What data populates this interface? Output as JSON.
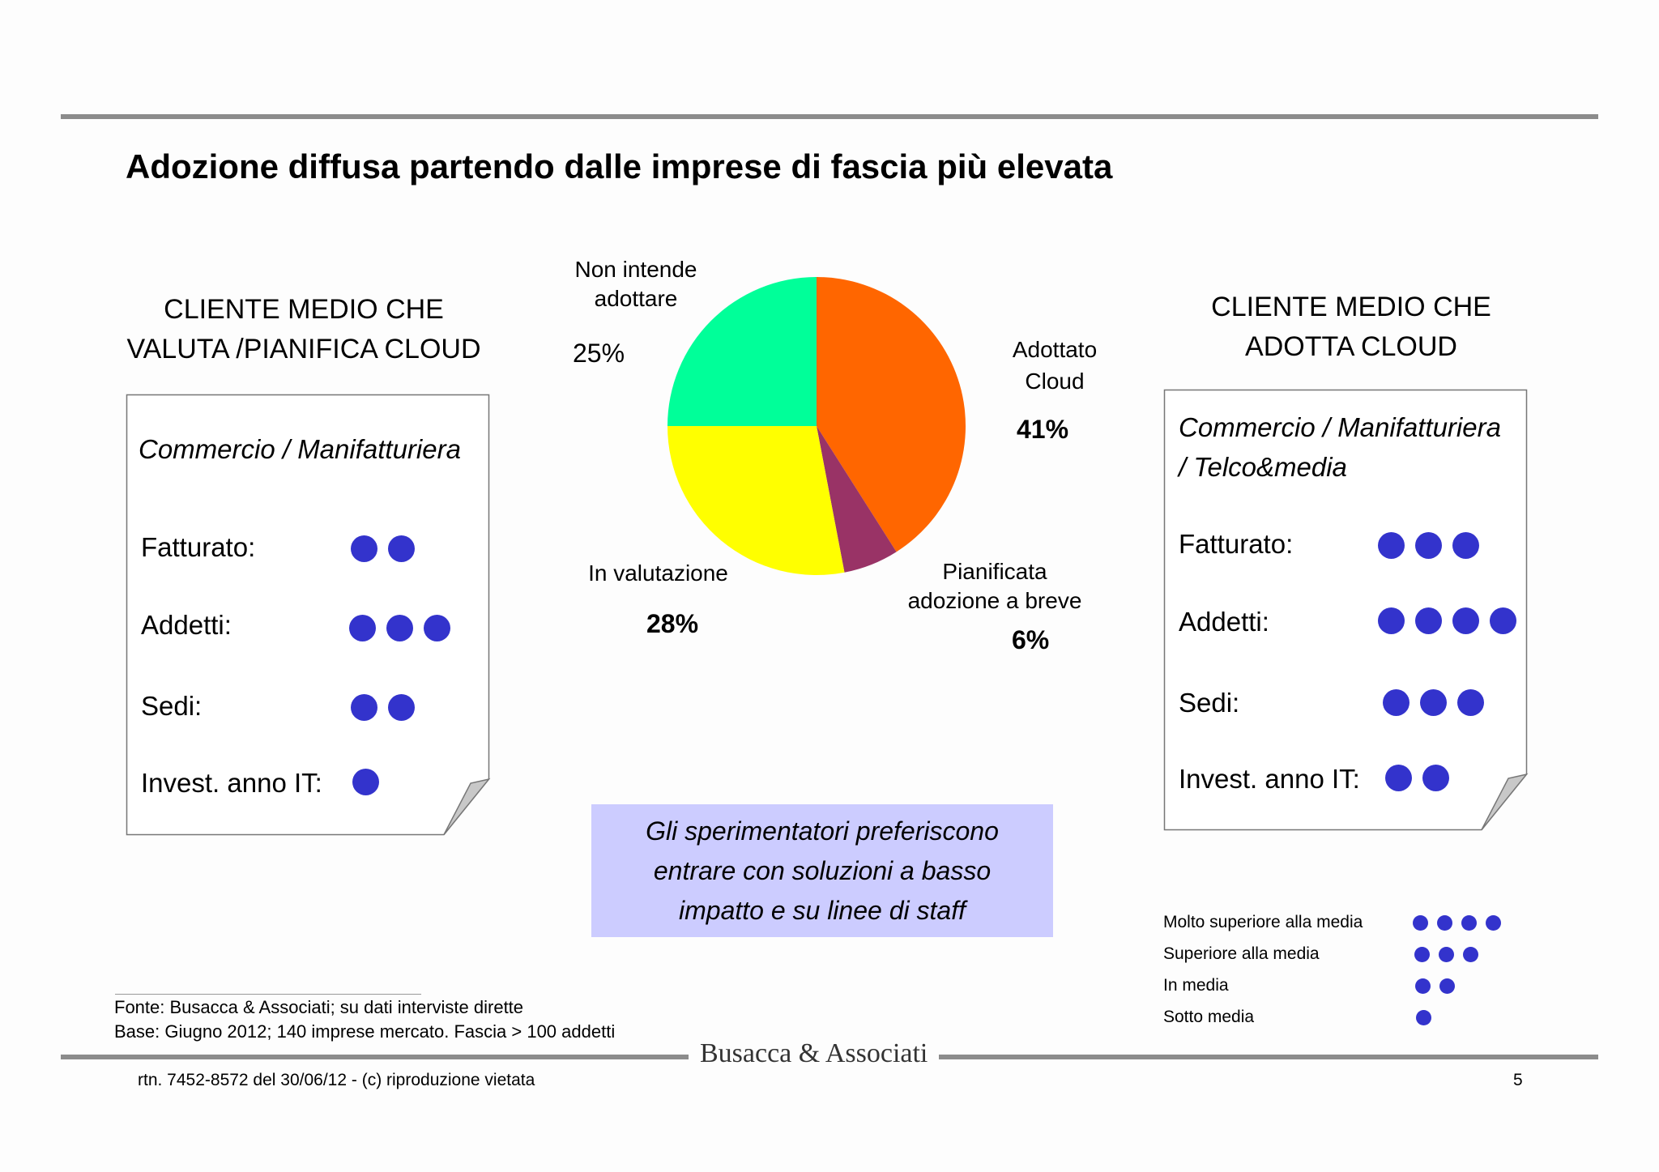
{
  "title": "Adozione diffusa partendo dalle imprese di fascia più elevata",
  "left_card": {
    "header_line1": "CLIENTE MEDIO CHE",
    "header_line2": "VALUTA /PIANIFICA CLOUD",
    "sector": "Commercio / Manifatturiera",
    "rows": [
      {
        "label": "Fatturato:",
        "dots": 2
      },
      {
        "label": "Addetti:",
        "dots": 3
      },
      {
        "label": "Sedi:",
        "dots": 2
      },
      {
        "label": "Invest. anno IT:",
        "dots": 1
      }
    ]
  },
  "right_card": {
    "header_line1": "CLIENTE MEDIO CHE",
    "header_line2": "ADOTTA CLOUD",
    "sector_line1": "Commercio / Manifatturiera",
    "sector_line2": "/ Telco&media",
    "rows": [
      {
        "label": "Fatturato:",
        "dots": 3
      },
      {
        "label": "Addetti:",
        "dots": 4
      },
      {
        "label": "Sedi:",
        "dots": 3
      },
      {
        "label": "Invest. anno IT:",
        "dots": 2
      }
    ]
  },
  "chart_data": {
    "type": "pie",
    "title": "",
    "slices": [
      {
        "label_line1": "Adottato",
        "label_line2": "Cloud",
        "value": 41,
        "value_label": "41%",
        "color": "#ff6600"
      },
      {
        "label_line1": "Pianificata",
        "label_line2": "adozione a breve",
        "value": 6,
        "value_label": "6%",
        "color": "#993366"
      },
      {
        "label_line1": "In valutazione",
        "label_line2": "",
        "value": 28,
        "value_label": "28%",
        "color": "#ffff00"
      },
      {
        "label_line1": "Non intende",
        "label_line2": "adottare",
        "value": 25,
        "value_label": "25%",
        "color": "#00ff99"
      }
    ]
  },
  "note": {
    "line1": "Gli sperimentatori preferiscono",
    "line2": "entrare con soluzioni a basso",
    "line3": "impatto e su linee di staff"
  },
  "legend": [
    {
      "label": "Molto superiore alla media",
      "dots": 4
    },
    {
      "label": "Superiore alla media",
      "dots": 3
    },
    {
      "label": "In media",
      "dots": 2
    },
    {
      "label": "Sotto media",
      "dots": 1
    }
  ],
  "footer": {
    "source": "Fonte: Busacca & Associati; su dati interviste dirette",
    "base": "Base: Giugno 2012; 140 imprese mercato. Fascia > 100 addetti",
    "brand": "Busacca & Associati",
    "copyright": "rtn. 7452-8572 del 30/06/12 - (c) riproduzione vietata",
    "page_number": "5"
  },
  "colors": {
    "dot": "#3333cc",
    "rule": "#8c8c8c",
    "note_bg": "#ccccff"
  }
}
